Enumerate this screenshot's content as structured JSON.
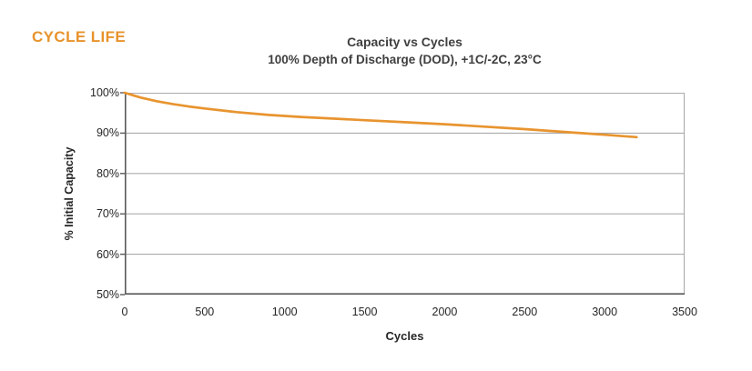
{
  "header": {
    "section_label": "CYCLE LIFE"
  },
  "chart": {
    "title": "Capacity vs Cycles",
    "subtitle": "100% Depth of Discharge (DOD), +1C/-2C, 23°C",
    "x_axis_label": "Cycles",
    "y_axis_label": "% Initial Capacity"
  },
  "colors": {
    "heading_orange": "#E8932C",
    "curve_orange": "#E8942F",
    "title_gray": "#3F3F3F",
    "axis_text": "#262626",
    "gridline_gray": "#ABABAB",
    "axis_line_dark": "#595959",
    "background": "#FFFFFF"
  },
  "chart_data": {
    "type": "line",
    "title": "Capacity vs Cycles",
    "subtitle": "100% Depth of Discharge (DOD), +1C/-2C, 23°C",
    "xlabel": "Cycles",
    "ylabel": "% Initial Capacity",
    "xlim": [
      0,
      3500
    ],
    "ylim": [
      50,
      100
    ],
    "x_ticks": [
      0,
      500,
      1000,
      1500,
      2000,
      2500,
      3000,
      3500
    ],
    "x_tick_labels": [
      "0",
      "500",
      "1000",
      "1500",
      "2000",
      "2500",
      "3000",
      "3500"
    ],
    "y_ticks": [
      50,
      60,
      70,
      80,
      90,
      100
    ],
    "y_tick_labels": [
      "50%",
      "60%",
      "70%",
      "80%",
      "90%",
      "100%"
    ],
    "grid": "horizontal-only",
    "legend": "none",
    "series": [
      {
        "name": "% Initial Capacity",
        "color": "#E8942F",
        "x": [
          0,
          50,
          100,
          200,
          300,
          400,
          500,
          700,
          900,
          1100,
          1300,
          1500,
          1750,
          2000,
          2250,
          2500,
          2750,
          3000,
          3200
        ],
        "y": [
          100,
          99.4,
          98.8,
          97.9,
          97.2,
          96.6,
          96.1,
          95.2,
          94.5,
          94.0,
          93.6,
          93.2,
          92.7,
          92.2,
          91.6,
          91.0,
          90.3,
          89.6,
          89.0
        ]
      }
    ]
  }
}
